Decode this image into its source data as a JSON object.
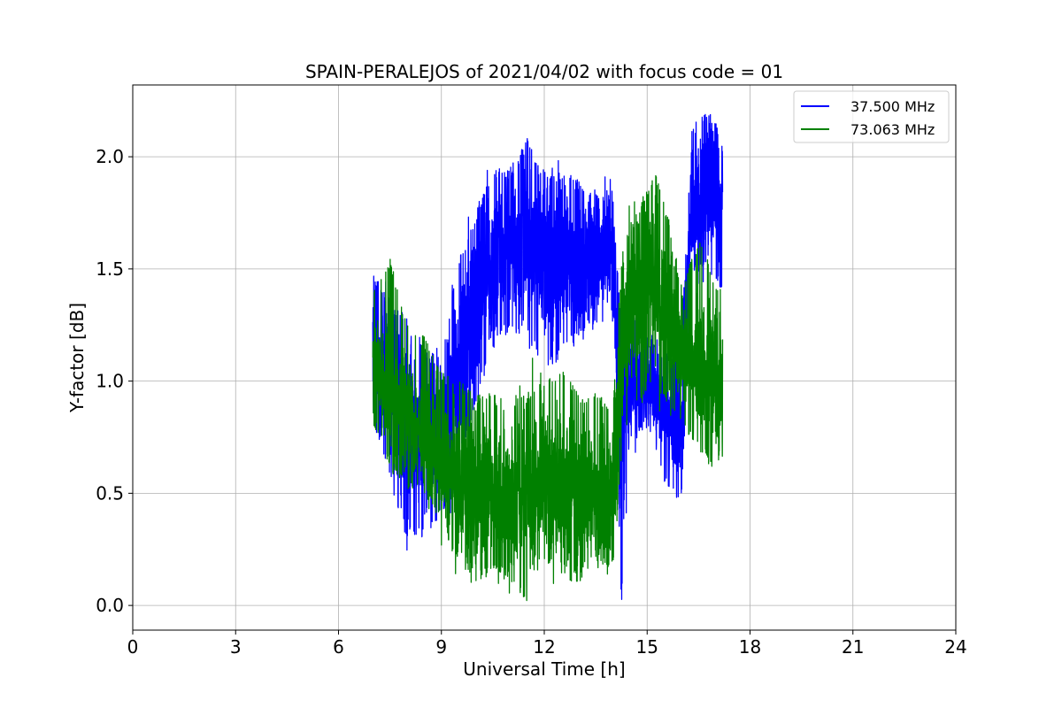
{
  "chart_data": {
    "type": "line",
    "title": "SPAIN-PERALEJOS of 2021/04/02 with focus code = 01",
    "xlabel": "Universal Time [h]",
    "ylabel": "Y-factor [dB]",
    "xlim": [
      0,
      24
    ],
    "ylim": [
      -0.11,
      2.32
    ],
    "xticks": [
      "0",
      "3",
      "6",
      "9",
      "12",
      "15",
      "18",
      "21",
      "24"
    ],
    "yticks": [
      "0.0",
      "0.5",
      "1.0",
      "1.5",
      "2.0"
    ],
    "grid": true,
    "legend_position": "top-right",
    "series": [
      {
        "name": "37.500 MHz",
        "color": "#0000ff",
        "envelope": [
          {
            "x": 7.0,
            "low": 0.85,
            "mid": 1.15,
            "high": 1.5
          },
          {
            "x": 7.5,
            "low": 0.55,
            "mid": 1.0,
            "high": 1.35
          },
          {
            "x": 8.0,
            "low": 0.3,
            "mid": 0.8,
            "high": 1.3
          },
          {
            "x": 8.5,
            "low": 0.3,
            "mid": 0.75,
            "high": 1.15
          },
          {
            "x": 9.0,
            "low": 0.4,
            "mid": 0.8,
            "high": 1.1
          },
          {
            "x": 9.5,
            "low": 0.5,
            "mid": 1.0,
            "high": 1.55
          },
          {
            "x": 10.0,
            "low": 0.9,
            "mid": 1.35,
            "high": 1.75
          },
          {
            "x": 10.5,
            "low": 1.2,
            "mid": 1.55,
            "high": 1.95
          },
          {
            "x": 11.0,
            "low": 1.2,
            "mid": 1.6,
            "high": 1.95
          },
          {
            "x": 11.5,
            "low": 1.2,
            "mid": 1.65,
            "high": 2.08
          },
          {
            "x": 12.0,
            "low": 1.05,
            "mid": 1.55,
            "high": 1.9
          },
          {
            "x": 12.5,
            "low": 1.1,
            "mid": 1.55,
            "high": 1.95
          },
          {
            "x": 13.0,
            "low": 1.2,
            "mid": 1.55,
            "high": 1.9
          },
          {
            "x": 13.5,
            "low": 1.25,
            "mid": 1.55,
            "high": 1.85
          },
          {
            "x": 14.0,
            "low": 1.25,
            "mid": 1.55,
            "high": 1.85
          },
          {
            "x": 14.25,
            "low": 0.0,
            "mid": 0.7,
            "high": 1.2
          },
          {
            "x": 14.5,
            "low": 0.7,
            "mid": 0.95,
            "high": 1.3
          },
          {
            "x": 15.0,
            "low": 0.8,
            "mid": 1.0,
            "high": 1.25
          },
          {
            "x": 15.5,
            "low": 0.55,
            "mid": 0.85,
            "high": 1.1
          },
          {
            "x": 16.0,
            "low": 0.45,
            "mid": 0.8,
            "high": 1.2
          },
          {
            "x": 16.3,
            "low": 1.45,
            "mid": 1.8,
            "high": 2.15
          },
          {
            "x": 16.8,
            "low": 1.5,
            "mid": 1.85,
            "high": 2.2
          },
          {
            "x": 17.2,
            "low": 1.4,
            "mid": 1.75,
            "high": 2.05
          }
        ]
      },
      {
        "name": "73.063 MHz",
        "color": "#008000",
        "envelope": [
          {
            "x": 7.0,
            "low": 0.8,
            "mid": 1.05,
            "high": 1.4
          },
          {
            "x": 7.5,
            "low": 0.6,
            "mid": 0.95,
            "high": 1.55
          },
          {
            "x": 8.0,
            "low": 0.55,
            "mid": 0.85,
            "high": 1.25
          },
          {
            "x": 8.5,
            "low": 0.5,
            "mid": 0.75,
            "high": 1.2
          },
          {
            "x": 9.0,
            "low": 0.35,
            "mid": 0.65,
            "high": 1.05
          },
          {
            "x": 9.5,
            "low": 0.2,
            "mid": 0.55,
            "high": 1.0
          },
          {
            "x": 10.0,
            "low": 0.1,
            "mid": 0.5,
            "high": 0.95
          },
          {
            "x": 10.5,
            "low": 0.15,
            "mid": 0.5,
            "high": 0.95
          },
          {
            "x": 11.0,
            "low": 0.1,
            "mid": 0.5,
            "high": 0.9
          },
          {
            "x": 11.5,
            "low": 0.0,
            "mid": 0.5,
            "high": 0.95
          },
          {
            "x": 12.0,
            "low": 0.2,
            "mid": 0.55,
            "high": 1.0
          },
          {
            "x": 12.5,
            "low": 0.15,
            "mid": 0.55,
            "high": 1.05
          },
          {
            "x": 13.0,
            "low": 0.1,
            "mid": 0.5,
            "high": 0.95
          },
          {
            "x": 13.5,
            "low": 0.2,
            "mid": 0.5,
            "high": 0.95
          },
          {
            "x": 14.0,
            "low": 0.15,
            "mid": 0.5,
            "high": 0.9
          },
          {
            "x": 14.3,
            "low": 0.75,
            "mid": 1.2,
            "high": 1.65
          },
          {
            "x": 14.7,
            "low": 0.9,
            "mid": 1.35,
            "high": 1.75
          },
          {
            "x": 15.2,
            "low": 1.0,
            "mid": 1.4,
            "high": 1.95
          },
          {
            "x": 15.7,
            "low": 0.85,
            "mid": 1.25,
            "high": 1.7
          },
          {
            "x": 16.0,
            "low": 0.8,
            "mid": 1.1,
            "high": 1.4
          },
          {
            "x": 16.5,
            "low": 0.7,
            "mid": 1.05,
            "high": 1.65
          },
          {
            "x": 17.0,
            "low": 0.55,
            "mid": 1.0,
            "high": 1.45
          },
          {
            "x": 17.2,
            "low": 0.7,
            "mid": 1.0,
            "high": 1.4
          }
        ]
      }
    ]
  }
}
